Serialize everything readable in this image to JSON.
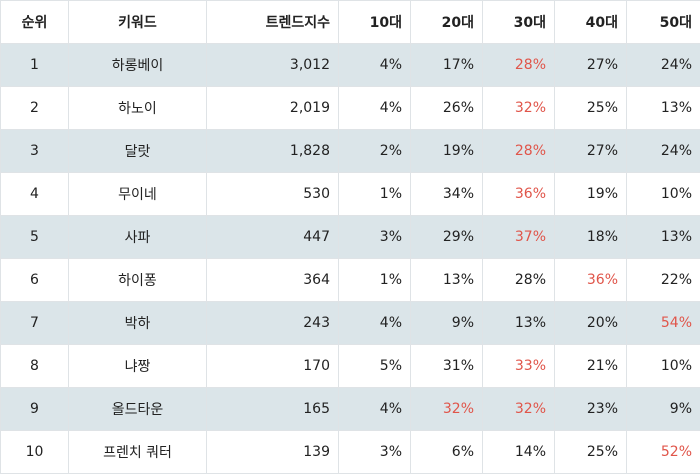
{
  "headers": [
    "순위",
    "키워드",
    "트렌드지수",
    "10대",
    "20대",
    "30대",
    "40대",
    "50대"
  ],
  "highlight_color": "#e0554a",
  "rows": [
    {
      "rank": "1",
      "keyword": "하롱베이",
      "index": "3,012",
      "a10": "4%",
      "a20": "17%",
      "a30": "28%",
      "a40": "27%",
      "a50": "24%",
      "highlight": [
        "a30"
      ]
    },
    {
      "rank": "2",
      "keyword": "하노이",
      "index": "2,019",
      "a10": "4%",
      "a20": "26%",
      "a30": "32%",
      "a40": "25%",
      "a50": "13%",
      "highlight": [
        "a30"
      ]
    },
    {
      "rank": "3",
      "keyword": "달랏",
      "index": "1,828",
      "a10": "2%",
      "a20": "19%",
      "a30": "28%",
      "a40": "27%",
      "a50": "24%",
      "highlight": [
        "a30"
      ]
    },
    {
      "rank": "4",
      "keyword": "무이네",
      "index": "530",
      "a10": "1%",
      "a20": "34%",
      "a30": "36%",
      "a40": "19%",
      "a50": "10%",
      "highlight": [
        "a30"
      ]
    },
    {
      "rank": "5",
      "keyword": "사파",
      "index": "447",
      "a10": "3%",
      "a20": "29%",
      "a30": "37%",
      "a40": "18%",
      "a50": "13%",
      "highlight": [
        "a30"
      ]
    },
    {
      "rank": "6",
      "keyword": "하이퐁",
      "index": "364",
      "a10": "1%",
      "a20": "13%",
      "a30": "28%",
      "a40": "36%",
      "a50": "22%",
      "highlight": [
        "a40"
      ]
    },
    {
      "rank": "7",
      "keyword": "박하",
      "index": "243",
      "a10": "4%",
      "a20": "9%",
      "a30": "13%",
      "a40": "20%",
      "a50": "54%",
      "highlight": [
        "a50"
      ]
    },
    {
      "rank": "8",
      "keyword": "냐짱",
      "index": "170",
      "a10": "5%",
      "a20": "31%",
      "a30": "33%",
      "a40": "21%",
      "a50": "10%",
      "highlight": [
        "a30"
      ]
    },
    {
      "rank": "9",
      "keyword": "올드타운",
      "index": "165",
      "a10": "4%",
      "a20": "32%",
      "a30": "32%",
      "a40": "23%",
      "a50": "9%",
      "highlight": [
        "a20",
        "a30"
      ]
    },
    {
      "rank": "10",
      "keyword": "프렌치 쿼터",
      "index": "139",
      "a10": "3%",
      "a20": "6%",
      "a30": "14%",
      "a40": "25%",
      "a50": "52%",
      "highlight": [
        "a50"
      ]
    }
  ]
}
